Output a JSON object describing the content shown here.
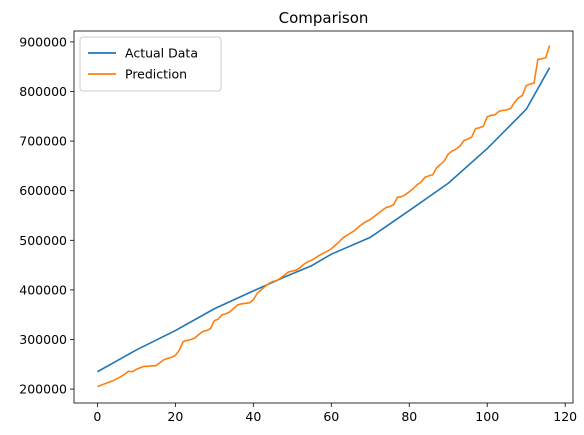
{
  "chart_data": {
    "type": "line",
    "title": "Comparison",
    "xlabel": "",
    "ylabel": "",
    "xlim": [
      -6,
      122
    ],
    "ylim": [
      172000,
      922000
    ],
    "x_ticks": [
      0,
      20,
      40,
      60,
      80,
      100,
      120
    ],
    "y_ticks": [
      200000,
      300000,
      400000,
      500000,
      600000,
      700000,
      800000,
      900000
    ],
    "legend_position": "top-left",
    "grid": false,
    "series": [
      {
        "name": "Actual Data",
        "color": "#1f77b4",
        "points": [
          [
            0,
            235000
          ],
          [
            10,
            279000
          ],
          [
            20,
            318000
          ],
          [
            30,
            362000
          ],
          [
            40,
            398000
          ],
          [
            48,
            426000
          ],
          [
            55,
            449000
          ],
          [
            60,
            472000
          ],
          [
            70,
            506000
          ],
          [
            80,
            560000
          ],
          [
            90,
            615000
          ],
          [
            100,
            685000
          ],
          [
            110,
            764000
          ],
          [
            116,
            848000
          ]
        ]
      },
      {
        "name": "Prediction",
        "color": "#ff7f0e",
        "points": [
          [
            0,
            205000
          ],
          [
            1,
            208000
          ],
          [
            2,
            211000
          ],
          [
            3,
            214000
          ],
          [
            4,
            217000
          ],
          [
            5,
            221000
          ],
          [
            6,
            225000
          ],
          [
            7,
            230000
          ],
          [
            8,
            236000
          ],
          [
            9,
            235000
          ],
          [
            10,
            240000
          ],
          [
            11,
            243000
          ],
          [
            12,
            246000
          ],
          [
            13,
            246000
          ],
          [
            14,
            247000
          ],
          [
            15,
            247000
          ],
          [
            16,
            253000
          ],
          [
            17,
            259000
          ],
          [
            18,
            262000
          ],
          [
            19,
            264000
          ],
          [
            20,
            268000
          ],
          [
            21,
            278000
          ],
          [
            22,
            296000
          ],
          [
            23,
            298000
          ],
          [
            24,
            300000
          ],
          [
            25,
            303000
          ],
          [
            26,
            310000
          ],
          [
            27,
            316000
          ],
          [
            28,
            318000
          ],
          [
            29,
            322000
          ],
          [
            30,
            338000
          ],
          [
            31,
            341000
          ],
          [
            32,
            350000
          ],
          [
            33,
            352000
          ],
          [
            34,
            356000
          ],
          [
            35,
            363000
          ],
          [
            36,
            370000
          ],
          [
            37,
            372000
          ],
          [
            38,
            373000
          ],
          [
            39,
            374000
          ],
          [
            40,
            380000
          ],
          [
            41,
            393000
          ],
          [
            42,
            400000
          ],
          [
            43,
            407000
          ],
          [
            44,
            413000
          ],
          [
            45,
            417000
          ],
          [
            46,
            419000
          ],
          [
            47,
            424000
          ],
          [
            48,
            430000
          ],
          [
            49,
            436000
          ],
          [
            50,
            438000
          ],
          [
            51,
            440000
          ],
          [
            52,
            445000
          ],
          [
            53,
            452000
          ],
          [
            54,
            457000
          ],
          [
            55,
            460000
          ],
          [
            56,
            465000
          ],
          [
            57,
            470000
          ],
          [
            58,
            474000
          ],
          [
            59,
            478000
          ],
          [
            60,
            483000
          ],
          [
            61,
            490000
          ],
          [
            62,
            497000
          ],
          [
            63,
            505000
          ],
          [
            64,
            510000
          ],
          [
            65,
            515000
          ],
          [
            66,
            520000
          ],
          [
            67,
            527000
          ],
          [
            68,
            533000
          ],
          [
            69,
            538000
          ],
          [
            70,
            542000
          ],
          [
            71,
            548000
          ],
          [
            72,
            554000
          ],
          [
            73,
            560000
          ],
          [
            74,
            566000
          ],
          [
            75,
            568000
          ],
          [
            76,
            572000
          ],
          [
            77,
            587000
          ],
          [
            78,
            588000
          ],
          [
            79,
            592000
          ],
          [
            80,
            598000
          ],
          [
            81,
            604000
          ],
          [
            82,
            612000
          ],
          [
            83,
            617000
          ],
          [
            84,
            627000
          ],
          [
            85,
            630000
          ],
          [
            86,
            632000
          ],
          [
            87,
            646000
          ],
          [
            88,
            653000
          ],
          [
            89,
            660000
          ],
          [
            90,
            674000
          ],
          [
            91,
            680000
          ],
          [
            92,
            684000
          ],
          [
            93,
            690000
          ],
          [
            94,
            701000
          ],
          [
            95,
            704000
          ],
          [
            96,
            708000
          ],
          [
            97,
            725000
          ],
          [
            98,
            727000
          ],
          [
            99,
            730000
          ],
          [
            100,
            749000
          ],
          [
            101,
            752000
          ],
          [
            102,
            753000
          ],
          [
            103,
            760000
          ],
          [
            104,
            762000
          ],
          [
            105,
            763000
          ],
          [
            106,
            766000
          ],
          [
            107,
            778000
          ],
          [
            108,
            787000
          ],
          [
            109,
            792000
          ],
          [
            110,
            812000
          ],
          [
            111,
            815000
          ],
          [
            112,
            817000
          ],
          [
            113,
            865000
          ],
          [
            114,
            866000
          ],
          [
            115,
            868000
          ],
          [
            116,
            893000
          ]
        ]
      }
    ]
  }
}
